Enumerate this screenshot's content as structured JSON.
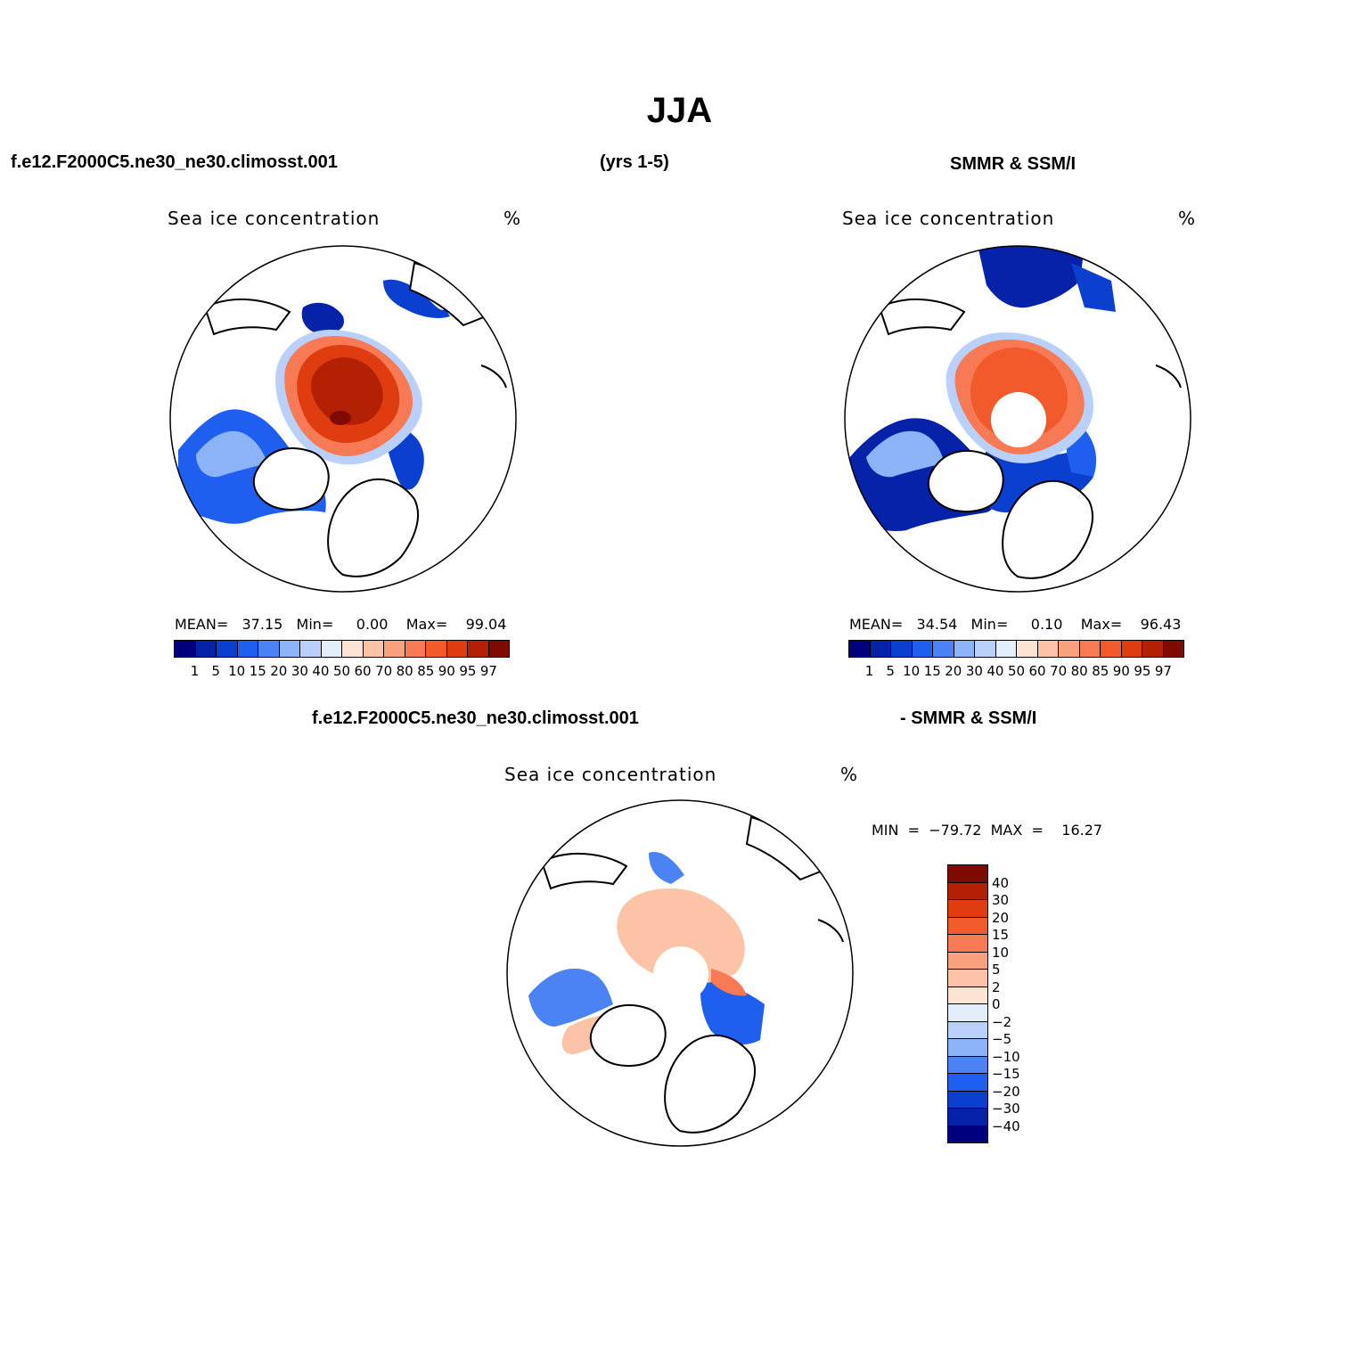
{
  "title": "JJA",
  "header": {
    "case_name": "f.e12.F2000C5.ne30_ne30.climosst.001",
    "years": "(yrs 1-5)",
    "obs_name": "SMMR & SSM/I"
  },
  "panels": [
    {
      "field_label": "Sea ice concentration",
      "units": "%",
      "stats": "MEAN=   37.15   Min=     0.00    Max=    99.04"
    },
    {
      "field_label": "Sea ice concentration",
      "units": "%",
      "stats": "MEAN=   34.54   Min=     0.10    Max=    96.43"
    }
  ],
  "diff_panel": {
    "title_left": "f.e12.F2000C5.ne30_ne30.climosst.001",
    "title_right": "- SMMR & SSM/I",
    "field_label": "Sea ice concentration",
    "units": "%",
    "minmax": "MIN  =  −79.72  MAX  =    16.27"
  },
  "colorbar_abs": {
    "labels": [
      "1",
      "5",
      "10",
      "15",
      "20",
      "30",
      "40",
      "50",
      "60",
      "70",
      "80",
      "85",
      "90",
      "95",
      "97"
    ],
    "colors": [
      "#00007f",
      "#0522a8",
      "#0a3fd0",
      "#1f5fef",
      "#4b83f5",
      "#8cb2f7",
      "#b9d1fa",
      "#e3eefd",
      "#fde3d3",
      "#fcc3a6",
      "#f9a07c",
      "#f77a55",
      "#f25a2b",
      "#df3c0f",
      "#b32105",
      "#7f0a00"
    ]
  },
  "colorbar_diff": {
    "labels": [
      "40",
      "30",
      "20",
      "15",
      "10",
      "5",
      "2",
      "0",
      "−2",
      "−5",
      "−10",
      "−15",
      "−20",
      "−30",
      "−40"
    ],
    "colors": [
      "#7f0a00",
      "#b32105",
      "#df3c0f",
      "#f25a2b",
      "#f77a55",
      "#f9a07c",
      "#fcc3a6",
      "#fde3d3",
      "#e3eefd",
      "#b9d1fa",
      "#8cb2f7",
      "#4b83f5",
      "#1f5fef",
      "#0a3fd0",
      "#0522a8",
      "#00007f"
    ]
  },
  "chart_data": [
    {
      "type": "heatmap",
      "projection": "north polar stereographic",
      "title": "Sea ice concentration (%)",
      "subtitle": "f.e12.F2000C5.ne30_ne30.climosst.001 (yrs 1-5), JJA",
      "mean": 37.15,
      "min": 0.0,
      "max": 99.04,
      "levels": [
        1,
        5,
        10,
        15,
        20,
        30,
        40,
        50,
        60,
        70,
        80,
        85,
        90,
        95,
        97
      ]
    },
    {
      "type": "heatmap",
      "projection": "north polar stereographic",
      "title": "Sea ice concentration (%)",
      "subtitle": "SMMR & SSM/I, JJA",
      "mean": 34.54,
      "min": 0.1,
      "max": 96.43,
      "levels": [
        1,
        5,
        10,
        15,
        20,
        30,
        40,
        50,
        60,
        70,
        80,
        85,
        90,
        95,
        97
      ]
    },
    {
      "type": "heatmap",
      "projection": "north polar stereographic",
      "title": "Sea ice concentration (%)",
      "subtitle": "f.e12.F2000C5.ne30_ne30.climosst.001 - SMMR & SSM/I, JJA",
      "min": -79.72,
      "max": 16.27,
      "levels": [
        40,
        30,
        20,
        15,
        10,
        5,
        2,
        0,
        -2,
        -5,
        -10,
        -15,
        -20,
        -30,
        -40
      ]
    }
  ]
}
